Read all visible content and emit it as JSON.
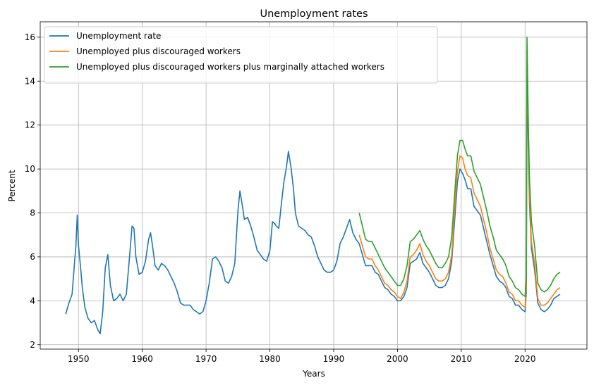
{
  "chart_data": {
    "type": "line",
    "title": "Unemployment rates",
    "xlabel": "Years",
    "ylabel": "Percent",
    "xlim": [
      1944.0,
      2029.7
    ],
    "ylim": [
      1.8,
      16.7
    ],
    "xticks": [
      1950,
      1960,
      1970,
      1980,
      1990,
      2000,
      2010,
      2020
    ],
    "yticks": [
      2,
      4,
      6,
      8,
      10,
      12,
      14,
      16
    ],
    "grid": true,
    "legend_position": "top-left",
    "series": [
      {
        "name": "Unemployment rate",
        "color": "#1f77b4",
        "points": [
          [
            1948.0,
            3.4
          ],
          [
            1948.5,
            3.9
          ],
          [
            1949.0,
            4.3
          ],
          [
            1949.4,
            5.8
          ],
          [
            1949.6,
            6.5
          ],
          [
            1949.8,
            7.9
          ],
          [
            1950.0,
            6.5
          ],
          [
            1950.3,
            5.6
          ],
          [
            1950.6,
            4.6
          ],
          [
            1951.0,
            3.7
          ],
          [
            1951.5,
            3.2
          ],
          [
            1952.0,
            3.0
          ],
          [
            1952.5,
            3.1
          ],
          [
            1953.0,
            2.7
          ],
          [
            1953.4,
            2.5
          ],
          [
            1953.8,
            3.5
          ],
          [
            1954.2,
            5.5
          ],
          [
            1954.6,
            6.1
          ],
          [
            1955.0,
            4.7
          ],
          [
            1955.5,
            4.0
          ],
          [
            1956.0,
            4.1
          ],
          [
            1956.5,
            4.3
          ],
          [
            1957.0,
            4.0
          ],
          [
            1957.5,
            4.3
          ],
          [
            1958.0,
            6.0
          ],
          [
            1958.4,
            7.4
          ],
          [
            1958.7,
            7.3
          ],
          [
            1959.0,
            6.0
          ],
          [
            1959.5,
            5.2
          ],
          [
            1960.0,
            5.3
          ],
          [
            1960.5,
            5.8
          ],
          [
            1961.0,
            6.8
          ],
          [
            1961.3,
            7.1
          ],
          [
            1961.6,
            6.5
          ],
          [
            1962.0,
            5.6
          ],
          [
            1962.5,
            5.4
          ],
          [
            1963.0,
            5.7
          ],
          [
            1963.5,
            5.6
          ],
          [
            1964.0,
            5.4
          ],
          [
            1964.5,
            5.1
          ],
          [
            1965.0,
            4.8
          ],
          [
            1965.5,
            4.4
          ],
          [
            1966.0,
            3.9
          ],
          [
            1966.5,
            3.8
          ],
          [
            1967.0,
            3.8
          ],
          [
            1967.5,
            3.8
          ],
          [
            1968.0,
            3.6
          ],
          [
            1968.5,
            3.5
          ],
          [
            1969.0,
            3.4
          ],
          [
            1969.5,
            3.5
          ],
          [
            1970.0,
            4.0
          ],
          [
            1970.5,
            4.8
          ],
          [
            1971.0,
            5.9
          ],
          [
            1971.5,
            6.0
          ],
          [
            1972.0,
            5.8
          ],
          [
            1972.5,
            5.5
          ],
          [
            1973.0,
            4.9
          ],
          [
            1973.5,
            4.8
          ],
          [
            1974.0,
            5.1
          ],
          [
            1974.5,
            5.7
          ],
          [
            1975.0,
            8.1
          ],
          [
            1975.3,
            9.0
          ],
          [
            1975.7,
            8.3
          ],
          [
            1976.0,
            7.7
          ],
          [
            1976.5,
            7.8
          ],
          [
            1977.0,
            7.4
          ],
          [
            1977.5,
            6.9
          ],
          [
            1978.0,
            6.3
          ],
          [
            1978.5,
            6.1
          ],
          [
            1979.0,
            5.9
          ],
          [
            1979.5,
            5.8
          ],
          [
            1980.0,
            6.3
          ],
          [
            1980.4,
            7.6
          ],
          [
            1980.8,
            7.5
          ],
          [
            1981.0,
            7.4
          ],
          [
            1981.4,
            7.3
          ],
          [
            1981.8,
            8.4
          ],
          [
            1982.2,
            9.4
          ],
          [
            1982.6,
            10.1
          ],
          [
            1982.9,
            10.8
          ],
          [
            1983.3,
            10.1
          ],
          [
            1983.7,
            9.1
          ],
          [
            1984.0,
            8.0
          ],
          [
            1984.5,
            7.4
          ],
          [
            1985.0,
            7.3
          ],
          [
            1985.5,
            7.2
          ],
          [
            1986.0,
            7.0
          ],
          [
            1986.5,
            6.9
          ],
          [
            1987.0,
            6.5
          ],
          [
            1987.5,
            6.0
          ],
          [
            1988.0,
            5.7
          ],
          [
            1988.5,
            5.4
          ],
          [
            1989.0,
            5.3
          ],
          [
            1989.5,
            5.3
          ],
          [
            1990.0,
            5.4
          ],
          [
            1990.5,
            5.8
          ],
          [
            1991.0,
            6.6
          ],
          [
            1991.5,
            6.9
          ],
          [
            1992.0,
            7.3
          ],
          [
            1992.5,
            7.7
          ],
          [
            1993.0,
            7.1
          ],
          [
            1993.5,
            6.8
          ],
          [
            1994.0,
            6.6
          ],
          [
            1994.5,
            6.1
          ],
          [
            1995.0,
            5.6
          ],
          [
            1995.5,
            5.6
          ],
          [
            1996.0,
            5.6
          ],
          [
            1996.5,
            5.3
          ],
          [
            1997.0,
            5.2
          ],
          [
            1997.5,
            4.9
          ],
          [
            1998.0,
            4.6
          ],
          [
            1998.5,
            4.5
          ],
          [
            1999.0,
            4.3
          ],
          [
            1999.5,
            4.2
          ],
          [
            2000.0,
            4.0
          ],
          [
            2000.5,
            4.0
          ],
          [
            2001.0,
            4.2
          ],
          [
            2001.5,
            4.6
          ],
          [
            2002.0,
            5.7
          ],
          [
            2002.5,
            5.8
          ],
          [
            2003.0,
            5.9
          ],
          [
            2003.5,
            6.2
          ],
          [
            2004.0,
            5.7
          ],
          [
            2004.5,
            5.5
          ],
          [
            2005.0,
            5.3
          ],
          [
            2005.5,
            5.0
          ],
          [
            2006.0,
            4.7
          ],
          [
            2006.5,
            4.6
          ],
          [
            2007.0,
            4.6
          ],
          [
            2007.5,
            4.7
          ],
          [
            2008.0,
            5.0
          ],
          [
            2008.5,
            5.8
          ],
          [
            2009.0,
            7.8
          ],
          [
            2009.4,
            9.4
          ],
          [
            2009.8,
            10.0
          ],
          [
            2010.2,
            9.8
          ],
          [
            2010.6,
            9.5
          ],
          [
            2011.0,
            9.1
          ],
          [
            2011.5,
            9.1
          ],
          [
            2012.0,
            8.3
          ],
          [
            2012.5,
            8.1
          ],
          [
            2013.0,
            7.9
          ],
          [
            2013.5,
            7.3
          ],
          [
            2014.0,
            6.7
          ],
          [
            2014.5,
            6.1
          ],
          [
            2015.0,
            5.6
          ],
          [
            2015.5,
            5.1
          ],
          [
            2016.0,
            4.9
          ],
          [
            2016.5,
            4.8
          ],
          [
            2017.0,
            4.6
          ],
          [
            2017.5,
            4.2
          ],
          [
            2018.0,
            4.1
          ],
          [
            2018.5,
            3.8
          ],
          [
            2019.0,
            3.8
          ],
          [
            2019.5,
            3.6
          ],
          [
            2020.0,
            3.5
          ],
          [
            2020.2,
            4.4
          ],
          [
            2020.3,
            14.7
          ],
          [
            2020.5,
            11.0
          ],
          [
            2020.7,
            8.4
          ],
          [
            2021.0,
            6.4
          ],
          [
            2021.5,
            5.4
          ],
          [
            2022.0,
            3.9
          ],
          [
            2022.5,
            3.6
          ],
          [
            2023.0,
            3.5
          ],
          [
            2023.5,
            3.6
          ],
          [
            2024.0,
            3.8
          ],
          [
            2024.5,
            4.1
          ],
          [
            2025.0,
            4.2
          ],
          [
            2025.5,
            4.3
          ]
        ]
      },
      {
        "name": "Unemployed plus discouraged workers",
        "color": "#ff7f0e",
        "points": [
          [
            1994.0,
            7.0
          ],
          [
            1994.5,
            6.5
          ],
          [
            1995.0,
            6.0
          ],
          [
            1995.5,
            5.9
          ],
          [
            1996.0,
            5.9
          ],
          [
            1996.5,
            5.6
          ],
          [
            1997.0,
            5.4
          ],
          [
            1997.5,
            5.1
          ],
          [
            1998.0,
            4.8
          ],
          [
            1998.5,
            4.7
          ],
          [
            1999.0,
            4.5
          ],
          [
            1999.5,
            4.4
          ],
          [
            2000.0,
            4.2
          ],
          [
            2000.5,
            4.1
          ],
          [
            2001.0,
            4.4
          ],
          [
            2001.5,
            4.9
          ],
          [
            2002.0,
            6.0
          ],
          [
            2002.5,
            6.1
          ],
          [
            2003.0,
            6.3
          ],
          [
            2003.5,
            6.6
          ],
          [
            2004.0,
            6.1
          ],
          [
            2004.5,
            5.8
          ],
          [
            2005.0,
            5.6
          ],
          [
            2005.5,
            5.3
          ],
          [
            2006.0,
            5.0
          ],
          [
            2006.5,
            4.9
          ],
          [
            2007.0,
            4.9
          ],
          [
            2007.5,
            5.0
          ],
          [
            2008.0,
            5.3
          ],
          [
            2008.5,
            6.1
          ],
          [
            2009.0,
            8.3
          ],
          [
            2009.4,
            9.9
          ],
          [
            2009.8,
            10.6
          ],
          [
            2010.2,
            10.5
          ],
          [
            2010.6,
            10.0
          ],
          [
            2011.0,
            9.7
          ],
          [
            2011.5,
            9.6
          ],
          [
            2012.0,
            8.9
          ],
          [
            2012.5,
            8.6
          ],
          [
            2013.0,
            8.3
          ],
          [
            2013.5,
            7.7
          ],
          [
            2014.0,
            7.1
          ],
          [
            2014.5,
            6.4
          ],
          [
            2015.0,
            5.9
          ],
          [
            2015.5,
            5.4
          ],
          [
            2016.0,
            5.2
          ],
          [
            2016.5,
            5.1
          ],
          [
            2017.0,
            4.8
          ],
          [
            2017.5,
            4.4
          ],
          [
            2018.0,
            4.3
          ],
          [
            2018.5,
            4.0
          ],
          [
            2019.0,
            4.0
          ],
          [
            2019.5,
            3.8
          ],
          [
            2020.0,
            3.7
          ],
          [
            2020.2,
            4.7
          ],
          [
            2020.3,
            15.4
          ],
          [
            2020.5,
            11.6
          ],
          [
            2020.7,
            8.8
          ],
          [
            2021.0,
            6.7
          ],
          [
            2021.5,
            5.7
          ],
          [
            2022.0,
            4.1
          ],
          [
            2022.5,
            3.8
          ],
          [
            2023.0,
            3.8
          ],
          [
            2023.5,
            3.9
          ],
          [
            2024.0,
            4.1
          ],
          [
            2024.5,
            4.3
          ],
          [
            2025.0,
            4.5
          ],
          [
            2025.5,
            4.6
          ]
        ]
      },
      {
        "name": "Unemployed plus discouraged workers plus marginally attached workers",
        "color": "#2ca02c",
        "points": [
          [
            1994.0,
            8.0
          ],
          [
            1994.5,
            7.4
          ],
          [
            1995.0,
            6.8
          ],
          [
            1995.5,
            6.7
          ],
          [
            1996.0,
            6.7
          ],
          [
            1996.5,
            6.4
          ],
          [
            1997.0,
            6.1
          ],
          [
            1997.5,
            5.8
          ],
          [
            1998.0,
            5.5
          ],
          [
            1998.5,
            5.3
          ],
          [
            1999.0,
            5.1
          ],
          [
            1999.5,
            4.9
          ],
          [
            2000.0,
            4.7
          ],
          [
            2000.5,
            4.7
          ],
          [
            2001.0,
            5.0
          ],
          [
            2001.5,
            5.6
          ],
          [
            2002.0,
            6.7
          ],
          [
            2002.5,
            6.8
          ],
          [
            2003.0,
            7.0
          ],
          [
            2003.5,
            7.2
          ],
          [
            2004.0,
            6.8
          ],
          [
            2004.5,
            6.5
          ],
          [
            2005.0,
            6.3
          ],
          [
            2005.5,
            6.0
          ],
          [
            2006.0,
            5.7
          ],
          [
            2006.5,
            5.5
          ],
          [
            2007.0,
            5.5
          ],
          [
            2007.5,
            5.7
          ],
          [
            2008.0,
            6.0
          ],
          [
            2008.5,
            6.9
          ],
          [
            2009.0,
            9.0
          ],
          [
            2009.4,
            10.6
          ],
          [
            2009.8,
            11.3
          ],
          [
            2010.2,
            11.3
          ],
          [
            2010.6,
            10.9
          ],
          [
            2011.0,
            10.6
          ],
          [
            2011.5,
            10.6
          ],
          [
            2012.0,
            9.9
          ],
          [
            2012.5,
            9.6
          ],
          [
            2013.0,
            9.3
          ],
          [
            2013.5,
            8.7
          ],
          [
            2014.0,
            8.1
          ],
          [
            2014.5,
            7.4
          ],
          [
            2015.0,
            6.9
          ],
          [
            2015.5,
            6.3
          ],
          [
            2016.0,
            6.1
          ],
          [
            2016.5,
            5.9
          ],
          [
            2017.0,
            5.6
          ],
          [
            2017.5,
            5.1
          ],
          [
            2018.0,
            4.9
          ],
          [
            2018.5,
            4.6
          ],
          [
            2019.0,
            4.5
          ],
          [
            2019.5,
            4.3
          ],
          [
            2020.0,
            4.2
          ],
          [
            2020.2,
            5.1
          ],
          [
            2020.3,
            16.0
          ],
          [
            2020.5,
            12.3
          ],
          [
            2020.7,
            9.5
          ],
          [
            2021.0,
            7.6
          ],
          [
            2021.5,
            6.5
          ],
          [
            2022.0,
            4.8
          ],
          [
            2022.5,
            4.5
          ],
          [
            2023.0,
            4.4
          ],
          [
            2023.5,
            4.5
          ],
          [
            2024.0,
            4.7
          ],
          [
            2024.5,
            5.0
          ],
          [
            2025.0,
            5.2
          ],
          [
            2025.5,
            5.3
          ]
        ]
      }
    ]
  }
}
